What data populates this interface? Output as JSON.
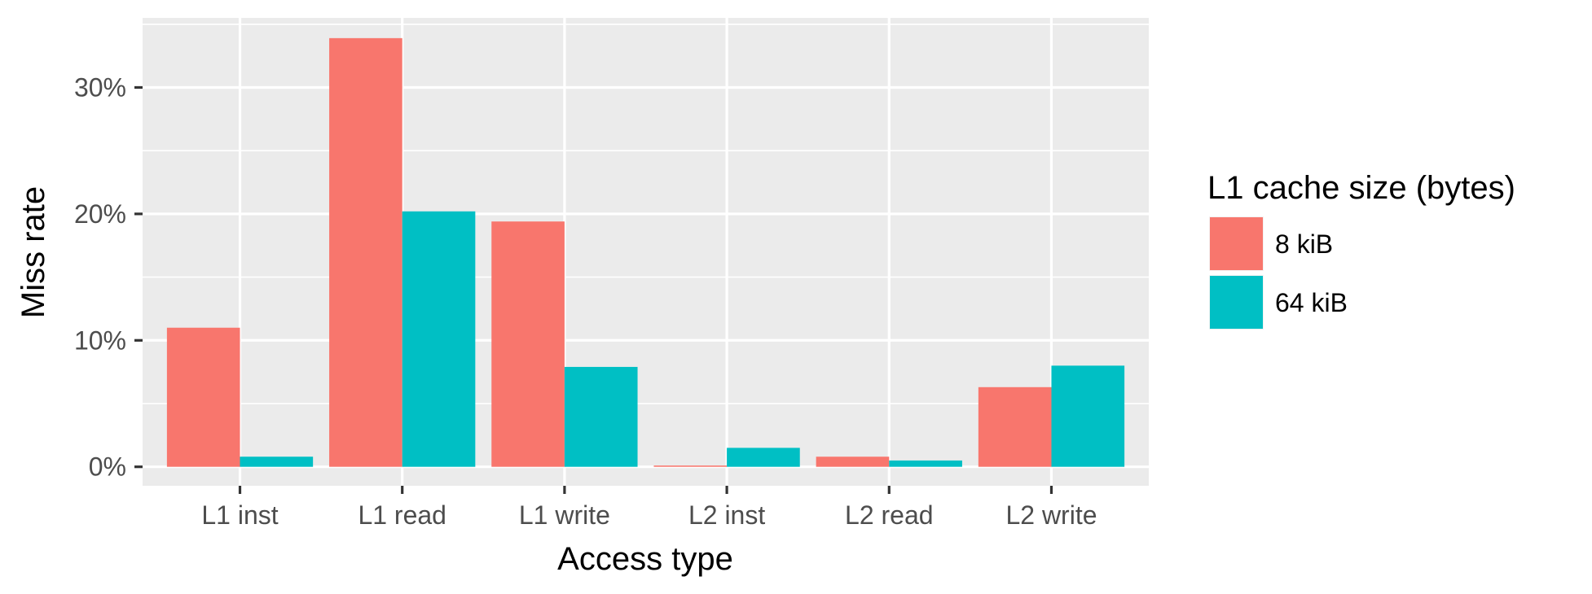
{
  "chart_data": {
    "type": "bar",
    "categories": [
      "L1 inst",
      "L1 read",
      "L1 write",
      "L2 inst",
      "L2 read",
      "L2 write"
    ],
    "series": [
      {
        "name": "8 kiB",
        "color": "#F8766D",
        "values": [
          11.0,
          33.9,
          19.4,
          0.1,
          0.8,
          6.3
        ]
      },
      {
        "name": "64 kiB",
        "color": "#00BFC4",
        "values": [
          0.8,
          20.2,
          7.9,
          1.5,
          0.5,
          8.0
        ]
      }
    ],
    "xlabel": "Access type",
    "ylabel": "Miss rate",
    "ylim": [
      -1.5,
      35.5
    ],
    "yticks": [
      0,
      10,
      20,
      30
    ],
    "ytick_labels": [
      "0%",
      "10%",
      "20%",
      "30%"
    ],
    "legend_title": "L1 cache size (bytes)",
    "legend_position": "right",
    "grid": true,
    "panel_background": "#EBEBEB"
  }
}
